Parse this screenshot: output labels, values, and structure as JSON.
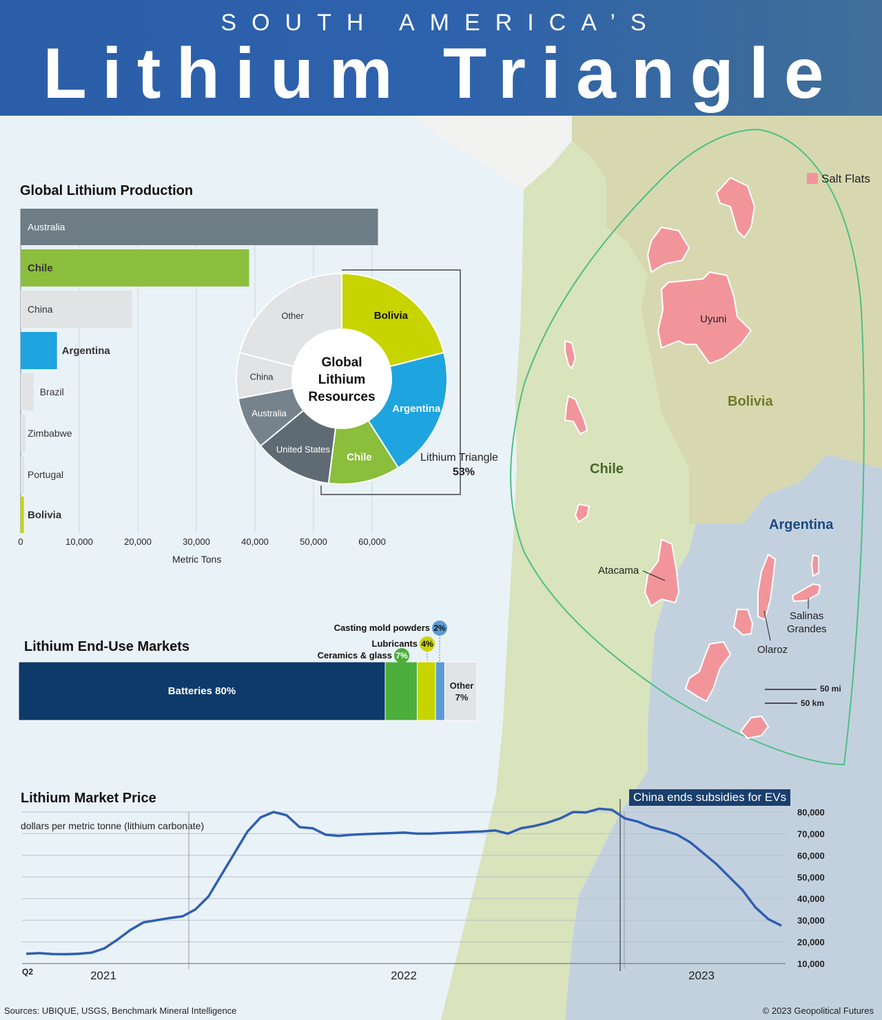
{
  "header": {
    "supertitle": "SOUTH AMERICA’S",
    "title": "Lithium Triangle"
  },
  "map": {
    "legend_label": "Salt Flats",
    "countries": {
      "chile": "Chile",
      "bolivia": "Bolivia",
      "argentina": "Argentina"
    },
    "salt_flats": {
      "uyuni": "Uyuni",
      "atacama": "Atacama",
      "olaroz": "Olaroz",
      "salinas_line1": "Salinas",
      "salinas_line2": "Grandes"
    },
    "scale": {
      "mi": "50 mi",
      "km": "50 km"
    },
    "colors": {
      "salt_flat": "#f2959b",
      "chile": "#d8e2bd",
      "bolivia": "#d7d8b0",
      "argentina": "#c2d0de",
      "triangle_outline": "#4dbf85"
    }
  },
  "production": {
    "title": "Global Lithium Production",
    "axis_label": "Metric Tons",
    "ticks": [
      "0",
      "10,000",
      "20,000",
      "30,000",
      "40,000",
      "50,000",
      "60,000"
    ]
  },
  "resources": {
    "center_line1": "Global",
    "center_line2": "Lithium",
    "center_line3": "Resources",
    "bracket_label": "Lithium Triangle",
    "bracket_value": "53%"
  },
  "end_use": {
    "title": "Lithium End-Use Markets",
    "other_label": "Other",
    "other_value": "7%"
  },
  "price": {
    "title": "Lithium Market Price",
    "unit": "dollars per metric tonne (lithium carbonate)",
    "annotation": "China ends subsidies for EVs",
    "quarter_label": "Q2",
    "ticks": [
      "80,000",
      "70,000",
      "60,000",
      "50,000",
      "40,000",
      "30,000",
      "20,000",
      "10,000"
    ]
  },
  "footer": {
    "sources": "Sources: UBIQUE, USGS, Benchmark Mineral Intelligence",
    "copyright": "© 2023 Geopolitical Futures"
  },
  "chart_data": [
    {
      "type": "bar",
      "title": "Global Lithium Production",
      "xlabel": "Metric Tons",
      "xlim": [
        0,
        60000
      ],
      "categories": [
        "Australia",
        "Chile",
        "China",
        "Argentina",
        "Brazil",
        "Zimbabwe",
        "Portugal",
        "Bolivia"
      ],
      "values": [
        61000,
        39000,
        19000,
        6200,
        2200,
        800,
        600,
        540
      ],
      "colors": [
        "#6e7c86",
        "#8bbe3c",
        "#e1e3e4",
        "#1ea4df",
        "#e1e3e4",
        "#e1e3e4",
        "#e1e3e4",
        "#c8d400"
      ]
    },
    {
      "type": "pie",
      "title": "Global Lithium Resources",
      "labels": [
        "Bolivia",
        "Argentina",
        "Chile",
        "United States",
        "Australia",
        "China",
        "Other"
      ],
      "values": [
        21,
        20,
        11,
        12,
        8,
        7,
        21
      ],
      "colors": [
        "#c8d400",
        "#1ea4df",
        "#8bbe3c",
        "#5f6b74",
        "#76838d",
        "#e1e3e4",
        "#e1e3e4"
      ]
    },
    {
      "type": "bar",
      "title": "Lithium End-Use Markets",
      "stacked": true,
      "categories": [
        "Batteries",
        "Ceramics & glass",
        "Lubricants",
        "Casting mold powders",
        "Other"
      ],
      "values": [
        80,
        7,
        4,
        2,
        7
      ],
      "labels": [
        "Batteries 80%",
        "7%",
        "4%",
        "2%",
        "7%"
      ],
      "colors": [
        "#0d3a69",
        "#4caf3c",
        "#c8d400",
        "#5b9bd5",
        "#e1e3e4"
      ]
    },
    {
      "type": "line",
      "title": "Lithium Market Price",
      "ylabel": "dollars per metric tonne (lithium carbonate)",
      "ylim": [
        10000,
        80000
      ],
      "x_labels": [
        "2021",
        "2022",
        "2023"
      ],
      "annotation": "China ends subsidies for EVs",
      "series": [
        {
          "values": [
            14500,
            14800,
            14400,
            14300,
            14500,
            15000,
            17000,
            21000,
            25500,
            29000,
            30000,
            31000,
            31800,
            35000,
            41000,
            51000,
            61000,
            71000,
            77500,
            80000,
            78500,
            73000,
            72500,
            69500,
            69000,
            69500,
            69800,
            70000,
            70200,
            70500,
            70000,
            70000,
            70300,
            70500,
            70800,
            71000,
            71500,
            70000,
            72500,
            73500,
            75000,
            77000,
            80000,
            79800,
            81500,
            81000,
            77000,
            75500,
            73000,
            71500,
            69500,
            66000,
            61000,
            56000,
            50000,
            44000,
            36000,
            30500,
            27500
          ]
        }
      ]
    }
  ]
}
